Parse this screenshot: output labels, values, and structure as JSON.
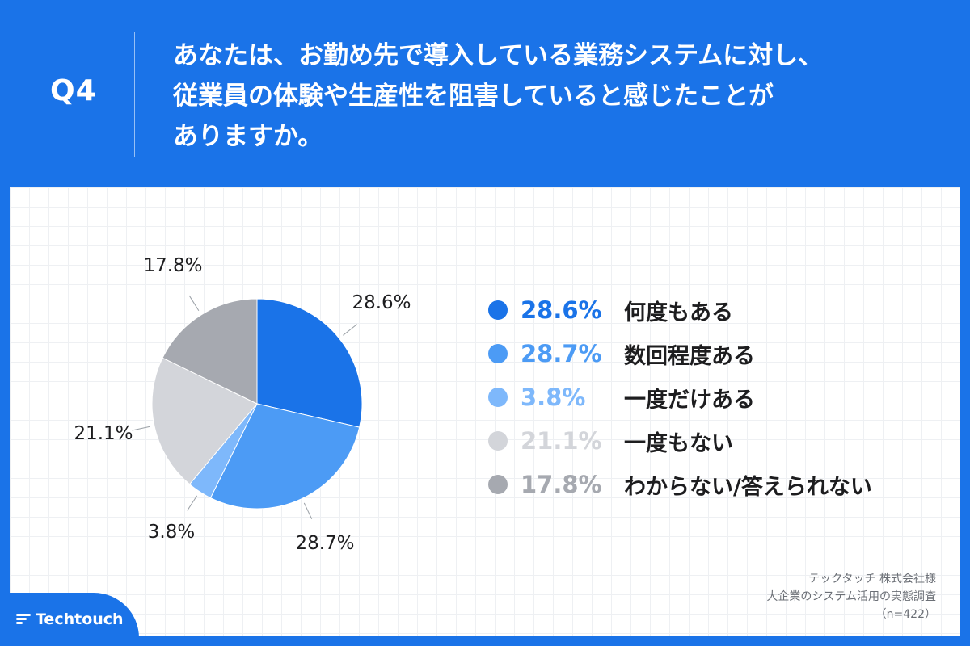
{
  "header": {
    "q_label": "Q4",
    "question_lines": [
      "あなたは、お勤め先で導入している業務システムに対し、",
      "従業員の体験や生産性を阻害していると感じたことが",
      "ありますか。"
    ]
  },
  "chart_data": {
    "type": "pie",
    "categories": [
      "何度もある",
      "数回程度ある",
      "一度だけある",
      "一度もない",
      "わからない/答えられない"
    ],
    "values": [
      28.6,
      28.7,
      3.8,
      21.1,
      17.8
    ],
    "value_labels": [
      "28.6%",
      "28.7%",
      "3.8%",
      "21.1%",
      "17.8%"
    ],
    "colors": [
      "#1a73e8",
      "#4c9bf5",
      "#7eb8fb",
      "#d3d5da",
      "#a6a9b0"
    ],
    "start_angle_deg": 0,
    "direction": "clockwise",
    "legend_placement": "right"
  },
  "source": {
    "lines": [
      "テックタッチ 株式会社様",
      "大企業のシステム活用の実態調査",
      "（n=422）"
    ]
  },
  "logo": {
    "text": "Techtouch",
    "icon": "techtouch-logo-icon"
  }
}
